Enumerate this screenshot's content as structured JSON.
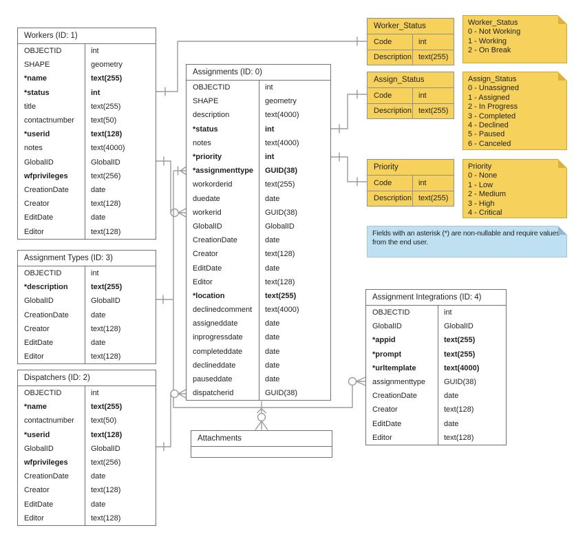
{
  "diagram": {
    "tables": {
      "workers": {
        "title": "Workers (ID: 1)",
        "rows": [
          {
            "name": "OBJECTID",
            "type": "int"
          },
          {
            "name": "SHAPE",
            "type": "geometry"
          },
          {
            "name": "*name",
            "type": "text(255)",
            "bold": true,
            "bold_type": true
          },
          {
            "name": "*status",
            "type": "int",
            "bold": true,
            "bold_type": true
          },
          {
            "name": "title",
            "type": "text(255)"
          },
          {
            "name": "contactnumber",
            "type": "text(50)"
          },
          {
            "name": "*userid",
            "type": "text(128)",
            "bold": true,
            "bold_type": true
          },
          {
            "name": "notes",
            "type": "text(4000)"
          },
          {
            "name": "GlobalID",
            "type": "GlobalID"
          },
          {
            "name": "wfprivileges",
            "type": "text(256)",
            "bold": true
          },
          {
            "name": "CreationDate",
            "type": "date"
          },
          {
            "name": "Creator",
            "type": "text(128)"
          },
          {
            "name": "EditDate",
            "type": "date"
          },
          {
            "name": "Editor",
            "type": "text(128)"
          }
        ]
      },
      "assignment_types": {
        "title": "Assignment Types (ID: 3)",
        "rows": [
          {
            "name": "OBJECTID",
            "type": "int"
          },
          {
            "name": "*description",
            "type": "text(255)",
            "bold": true,
            "bold_type": true
          },
          {
            "name": "GlobalID",
            "type": "GlobalID"
          },
          {
            "name": "CreationDate",
            "type": "date"
          },
          {
            "name": "Creator",
            "type": "text(128)"
          },
          {
            "name": "EditDate",
            "type": "date"
          },
          {
            "name": "Editor",
            "type": "text(128)"
          }
        ]
      },
      "dispatchers": {
        "title": "Dispatchers (ID: 2)",
        "rows": [
          {
            "name": "OBJECTID",
            "type": "int"
          },
          {
            "name": "*name",
            "type": "text(255)",
            "bold": true,
            "bold_type": true
          },
          {
            "name": "contactnumber",
            "type": "text(50)"
          },
          {
            "name": "*userid",
            "type": "text(128)",
            "bold": true,
            "bold_type": true
          },
          {
            "name": "GlobalID",
            "type": "GlobalID"
          },
          {
            "name": "wfprivileges",
            "type": "text(256)",
            "bold": true
          },
          {
            "name": "CreationDate",
            "type": "date"
          },
          {
            "name": "Creator",
            "type": "text(128)"
          },
          {
            "name": "EditDate",
            "type": "date"
          },
          {
            "name": "Editor",
            "type": "text(128)"
          }
        ]
      },
      "assignments": {
        "title": "Assignments (ID: 0)",
        "rows": [
          {
            "name": "OBJECTID",
            "type": "int"
          },
          {
            "name": "SHAPE",
            "type": "geometry"
          },
          {
            "name": "description",
            "type": "text(4000)"
          },
          {
            "name": "*status",
            "type": "int",
            "bold": true,
            "bold_type": true
          },
          {
            "name": "notes",
            "type": "text(4000)"
          },
          {
            "name": "*priority",
            "type": "int",
            "bold": true,
            "bold_type": true
          },
          {
            "name": "*assignmenttype",
            "type": "GUID(38)",
            "bold": true,
            "bold_type": true
          },
          {
            "name": "workorderid",
            "type": "text(255)"
          },
          {
            "name": "duedate",
            "type": "date"
          },
          {
            "name": "workerid",
            "type": "GUID(38)"
          },
          {
            "name": "GlobalID",
            "type": "GlobalID"
          },
          {
            "name": "CreationDate",
            "type": "date"
          },
          {
            "name": "Creator",
            "type": "text(128)"
          },
          {
            "name": "EditDate",
            "type": "date"
          },
          {
            "name": "Editor",
            "type": "text(128)"
          },
          {
            "name": "*location",
            "type": "text(255)",
            "bold": true,
            "bold_type": true
          },
          {
            "name": "declinedcomment",
            "type": "text(4000)"
          },
          {
            "name": "assigneddate",
            "type": "date"
          },
          {
            "name": "inprogressdate",
            "type": "date"
          },
          {
            "name": "completeddate",
            "type": "date"
          },
          {
            "name": "declineddate",
            "type": "date"
          },
          {
            "name": "pauseddate",
            "type": "date"
          },
          {
            "name": "dispatcherid",
            "type": "GUID(38)"
          }
        ]
      },
      "attachments": {
        "title": "Attachments",
        "rows": []
      },
      "assignment_integrations": {
        "title": "Assignment Integrations (ID: 4)",
        "rows": [
          {
            "name": "OBJECTID",
            "type": "int"
          },
          {
            "name": "GlobalID",
            "type": "GlobalID"
          },
          {
            "name": "*appid",
            "type": "text(255)",
            "bold": true,
            "bold_type": true
          },
          {
            "name": "*prompt",
            "type": "text(255)",
            "bold": true,
            "bold_type": true
          },
          {
            "name": "*urltemplate",
            "type": "text(4000)",
            "bold": true,
            "bold_type": true
          },
          {
            "name": "assignmenttype",
            "type": "GUID(38)"
          },
          {
            "name": "CreationDate",
            "type": "date"
          },
          {
            "name": "Creator",
            "type": "text(128)"
          },
          {
            "name": "EditDate",
            "type": "date"
          },
          {
            "name": "Editor",
            "type": "text(128)"
          }
        ]
      },
      "worker_status": {
        "title": "Worker_Status",
        "rows": [
          {
            "name": "Code",
            "type": "int"
          },
          {
            "name": "Description",
            "type": "text(255)"
          }
        ]
      },
      "assign_status": {
        "title": "Assign_Status",
        "rows": [
          {
            "name": "Code",
            "type": "int"
          },
          {
            "name": "Description",
            "type": "text(255)"
          }
        ]
      },
      "priority": {
        "title": "Priority",
        "rows": [
          {
            "name": "Code",
            "type": "int"
          },
          {
            "name": "Description",
            "type": "text(255)"
          }
        ]
      }
    },
    "notes": {
      "worker_status": {
        "lines": [
          "Worker_Status",
          "0 - Not Working",
          "1 - Working",
          "2 - On Break"
        ]
      },
      "assign_status": {
        "lines": [
          "Assign_Status",
          "0 - Unassigned",
          "1 - Assigned",
          "2 - In Progress",
          "3 - Completed",
          "4 - Declined",
          "5 - Paused",
          "6 - Canceled"
        ]
      },
      "priority": {
        "lines": [
          "Priority",
          "0 - None",
          "1 - Low",
          "2 - Medium",
          "3 - High",
          "4 - Critical"
        ]
      },
      "asterisk": {
        "lines": [
          "Fields with an asterisk (*) are non-nullable and require values from the end user."
        ]
      }
    },
    "colors": {
      "table_fill": "#ffffff",
      "table_border": "#6f6f6f",
      "lookup_fill": "#F6D15C",
      "note_fill": "#F6D15C",
      "note_fold": "#DCAF3F",
      "blue_note_fill": "#BFE0F1",
      "blue_note_fold": "#8FB9D3",
      "connector": "#9b9b9b"
    }
  }
}
